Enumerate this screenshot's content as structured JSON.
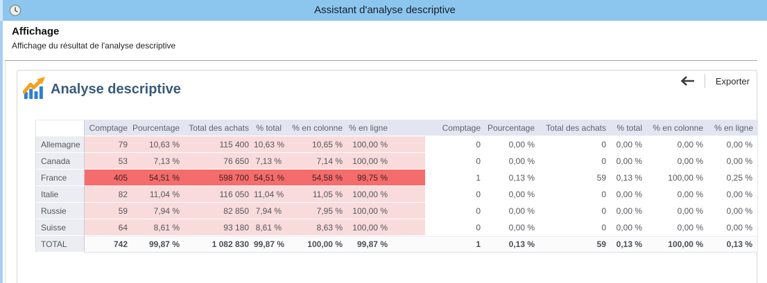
{
  "window": {
    "title": "Assistant d'analyse descriptive"
  },
  "page_header": {
    "title": "Affichage",
    "subtitle": "Affichage du résultat de l'analyse descriptive"
  },
  "section": {
    "title": "Analyse descriptive"
  },
  "toolbar": {
    "export_label": "Exporter",
    "back_icon": "back-arrow",
    "divider": "vertical-rule"
  },
  "icons": {
    "app": "app-icon",
    "section": "bar-chart-trend-icon"
  },
  "colors": {
    "titlebar": "#8cc6ee",
    "left_border": "#a9cef2",
    "section_title": "#3a5a7c",
    "header_cell_bg": "#e3e6f0",
    "label_cell_bg": "#ebedf2",
    "group1_cell_bg": "#fadbdb",
    "highlight_row_bg": "#f56c6c",
    "chart_blue": "#2e7fd1",
    "chart_orange": "#f5a11c"
  },
  "table": {
    "groups": [
      {
        "headers": [
          "Comptage",
          "Pourcentage",
          "Total des achats",
          "% total",
          "% en colonne",
          "% en ligne"
        ]
      },
      {
        "headers": [
          "Comptage",
          "Pourcentage",
          "Total des achats",
          "% total",
          "% en colonne",
          "% en ligne"
        ]
      }
    ],
    "rows": [
      {
        "label": "Allemagne",
        "highlight": false,
        "total": false,
        "g1": [
          "79",
          "10,63 %",
          "115 400",
          "10,63 %",
          "10,65 %",
          "100,00 %"
        ],
        "g2": [
          "0",
          "0,00 %",
          "0",
          "0,00 %",
          "0,00 %",
          "0,00 %"
        ]
      },
      {
        "label": "Canada",
        "highlight": false,
        "total": false,
        "g1": [
          "53",
          "7,13 %",
          "76 650",
          "7,13 %",
          "7,14 %",
          "100,00 %"
        ],
        "g2": [
          "0",
          "0,00 %",
          "0",
          "0,00 %",
          "0,00 %",
          "0,00 %"
        ]
      },
      {
        "label": "France",
        "highlight": true,
        "total": false,
        "g1": [
          "405",
          "54,51 %",
          "598 700",
          "54,51 %",
          "54,58 %",
          "99,75 %"
        ],
        "g2": [
          "1",
          "0,13 %",
          "59",
          "0,13 %",
          "100,00 %",
          "0,25 %"
        ]
      },
      {
        "label": "Italie",
        "highlight": false,
        "total": false,
        "g1": [
          "82",
          "11,04 %",
          "116 050",
          "11,04 %",
          "11,05 %",
          "100,00 %"
        ],
        "g2": [
          "0",
          "0,00 %",
          "0",
          "0,00 %",
          "0,00 %",
          "0,00 %"
        ]
      },
      {
        "label": "Russie",
        "highlight": false,
        "total": false,
        "g1": [
          "59",
          "7,94 %",
          "82 850",
          "7,94 %",
          "7,95 %",
          "100,00 %"
        ],
        "g2": [
          "0",
          "0,00 %",
          "0",
          "0,00 %",
          "0,00 %",
          "0,00 %"
        ]
      },
      {
        "label": "Suisse",
        "highlight": false,
        "total": false,
        "g1": [
          "64",
          "8,61 %",
          "93 180",
          "8,61 %",
          "8,63 %",
          "100,00 %"
        ],
        "g2": [
          "0",
          "0,00 %",
          "0",
          "0,00 %",
          "0,00 %",
          "0,00 %"
        ]
      },
      {
        "label": "TOTAL",
        "highlight": false,
        "total": true,
        "g1": [
          "742",
          "99,87 %",
          "1 082 830",
          "99,87 %",
          "100,00 %",
          "99,87 %"
        ],
        "g2": [
          "1",
          "0,13 %",
          "59",
          "0,13 %",
          "100,00 %",
          "0,13 %"
        ]
      }
    ]
  }
}
